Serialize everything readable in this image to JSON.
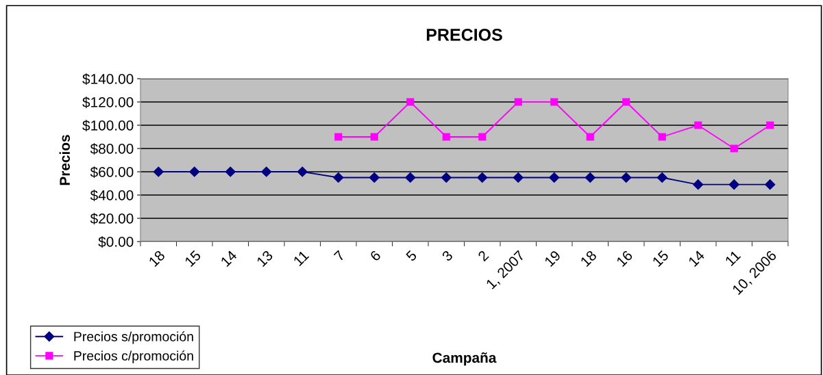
{
  "chart_data": {
    "type": "line",
    "title": "PRECIOS",
    "xlabel": "Campaña",
    "ylabel": "Precios",
    "categories": [
      "18",
      "15",
      "14",
      "13",
      "11",
      "7",
      "6",
      "5",
      "3",
      "2",
      "1, 2007",
      "19",
      "18",
      "16",
      "15",
      "14",
      "11",
      "10, 2006"
    ],
    "series": [
      {
        "name": "Precios s/promoción",
        "color": "#000080",
        "marker": "diamond",
        "values": [
          60,
          60,
          60,
          60,
          60,
          55,
          55,
          55,
          55,
          55,
          55,
          55,
          55,
          55,
          55,
          49,
          49,
          49
        ]
      },
      {
        "name": "Precios c/promoción",
        "color": "#ff00ff",
        "marker": "square",
        "values": [
          null,
          null,
          null,
          null,
          null,
          90,
          90,
          120,
          90,
          90,
          120,
          120,
          90,
          120,
          90,
          100,
          80,
          100
        ]
      }
    ],
    "ylim": [
      0,
      140
    ],
    "yticks": [
      {
        "value": 0,
        "label": "$0.00"
      },
      {
        "value": 20,
        "label": "$20.00"
      },
      {
        "value": 40,
        "label": "$40.00"
      },
      {
        "value": 60,
        "label": "$60.00"
      },
      {
        "value": 80,
        "label": "$80.00"
      },
      {
        "value": 100,
        "label": "$100.00"
      },
      {
        "value": 120,
        "label": "$120.00"
      },
      {
        "value": 140,
        "label": "$140.00"
      }
    ],
    "grid": "y",
    "legend": "bottom left"
  }
}
